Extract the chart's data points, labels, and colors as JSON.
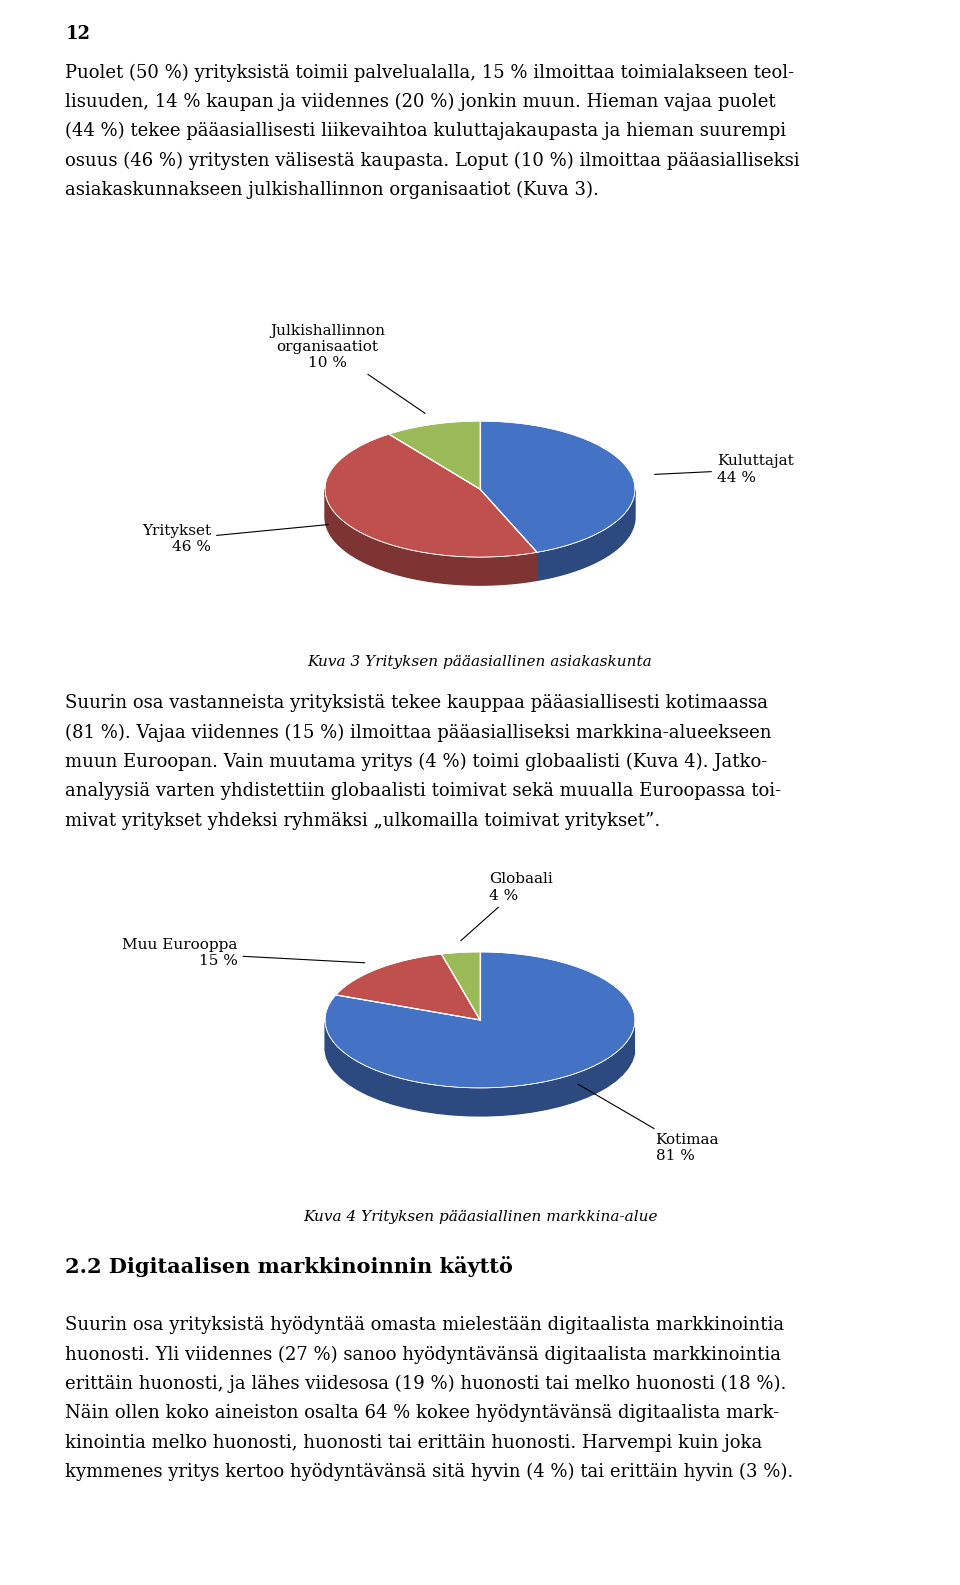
{
  "page_number": "12",
  "para1_lines": [
    "Puolet (50 %) yrityksistä toimii palvelualalla, 15 % ilmoittaa toimialakseen teol-",
    "lisuuden, 14 % kaupan ja viidennes (20 %) jonkin muun. Hieman vajaa puolet",
    "(44 %) tekee pääasiallisesti liikevaihtoa kuluttajakaupasta ja hieman suurempi",
    "osuus (46 %) yritysten välisestä kaupasta. Loput (10 %) ilmoittaa pääasialliseksi",
    "asiakaskunnakseen julkishallinnon organisaatiot (Kuva 3)."
  ],
  "chart1_slices": [
    44,
    46,
    10
  ],
  "chart1_labels": [
    "Kuluttajat\n44 %",
    "Yritykset\n46 %",
    "Julkishallinnon\norganisaatiot\n10 %"
  ],
  "chart1_colors": [
    "#4472C4",
    "#C0504D",
    "#9BBB59"
  ],
  "chart1_caption": "Kuva 3 Yrityksen pääasiallinen asiakaskunta",
  "para2_lines": [
    "Suurin osa vastanneista yrityksistä tekee kauppaa pääasiallisesti kotimaassa",
    "(81 %). Vajaa viidennes (15 %) ilmoittaa pääasialliseksi markkina-alueekseen",
    "muun Euroopan. Vain muutama yritys (4 %) toimi globaalisti (Kuva 4). Jatko-",
    "analyysiä varten yhdistettiin globaalisti toimivat sekä muualla Euroopassa toi-",
    "mivat yritykset yhdeksi ryhmäksi „ulkomailla toimivat yritykset”."
  ],
  "chart2_slices": [
    81,
    15,
    4
  ],
  "chart2_labels": [
    "Kotimaa\n81 %",
    "Muu Eurooppa\n15 %",
    "Globaali\n4 %"
  ],
  "chart2_colors": [
    "#4472C4",
    "#C0504D",
    "#9BBB59"
  ],
  "chart2_caption": "Kuva 4 Yrityksen pääasiallinen markkina-alue",
  "section_header": "2.2 Digitaalisen markkinoinnin käyttö",
  "para3_lines": [
    "Suurin osa yrityksistä hyödyntää omasta mielestään digitaalista markkinointia",
    "huonosti. Yli viidennes (27 %) sanoo hyödyntävänsä digitaalista markkinointia",
    "erittäin huonosti, ja lähes viidesosa (19 %) huonosti tai melko huonosti (18 %).",
    "Näin ollen koko aineiston osalta 64 % kokee hyödyntävänsä digitaalista mark-",
    "kinointia melko huonosti, huonosti tai erittäin huonosti. Harvempi kuin joka",
    "kymmenes yritys kertoo hyödyntävänsä sitä hyvin (4 %) tai erittäin hyvin (3 %)."
  ],
  "bg_color": "#FFFFFF",
  "text_color": "#000000"
}
